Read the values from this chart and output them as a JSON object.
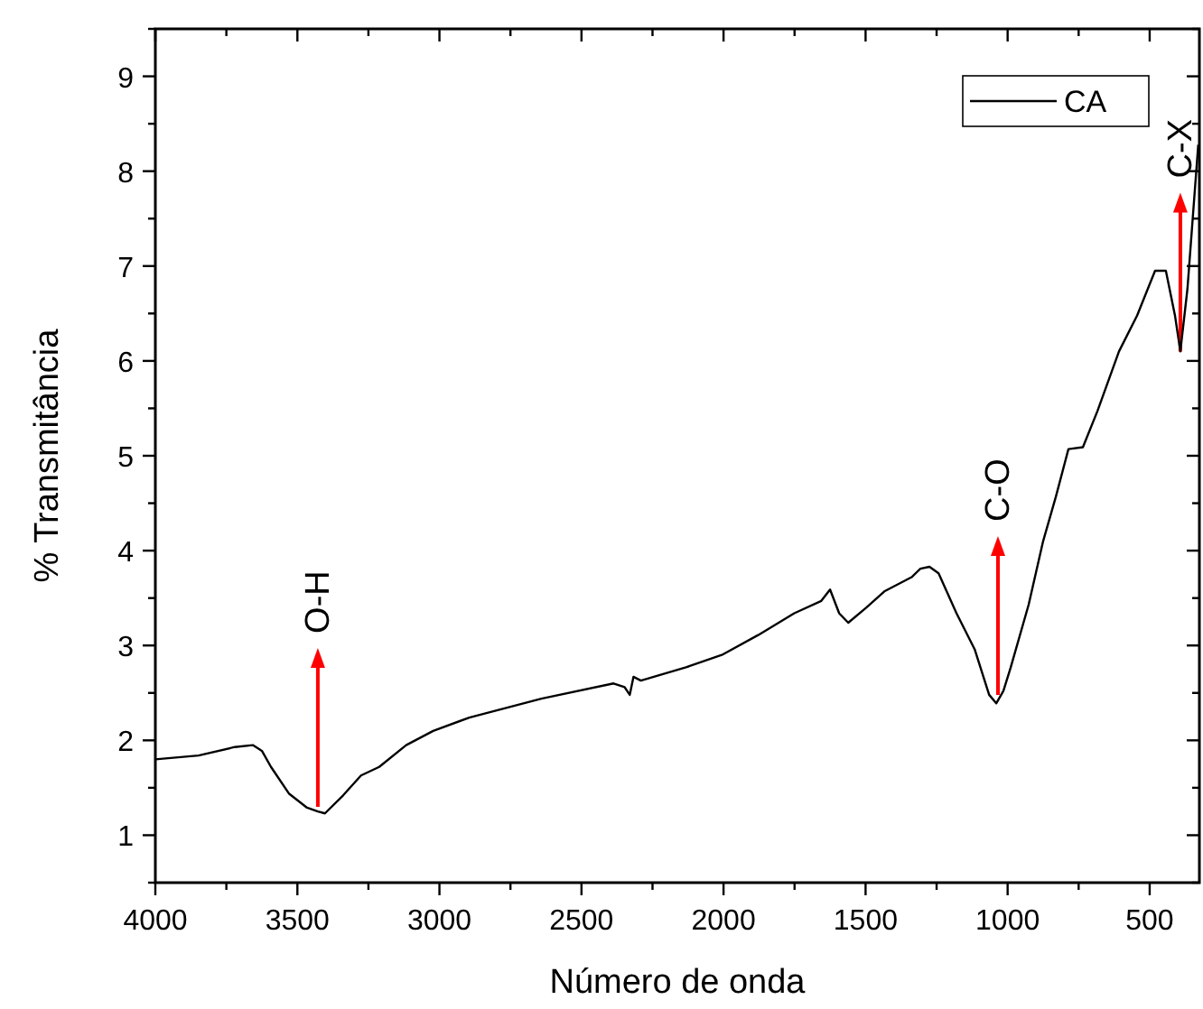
{
  "chart_data": {
    "type": "line",
    "xlabel": "Número de onda",
    "ylabel": "% Transmitância",
    "xlim": [
      4000,
      325
    ],
    "ylim": [
      0.5,
      9.5
    ],
    "xticks": [
      4000,
      {
        "value": 3750,
        "label": null
      },
      3500,
      {
        "value": 3250,
        "label": null
      },
      3000,
      {
        "value": 2750,
        "label": null
      },
      2500,
      {
        "value": 2250,
        "label": null
      },
      2000,
      {
        "value": 1750,
        "label": null
      },
      1500,
      {
        "value": 1250,
        "label": null
      },
      1000,
      {
        "value": 750,
        "label": null
      },
      500
    ],
    "yticks": [
      {
        "value": 0.5,
        "label": null
      },
      1,
      {
        "value": 1.5,
        "label": null
      },
      2,
      {
        "value": 2.5,
        "label": null
      },
      3,
      {
        "value": 3.5,
        "label": null
      },
      4,
      {
        "value": 4.5,
        "label": null
      },
      5,
      {
        "value": 5.5,
        "label": null
      },
      6,
      {
        "value": 6.5,
        "label": null
      },
      7,
      {
        "value": 7.5,
        "label": null
      },
      8,
      {
        "value": 8.5,
        "label": null
      },
      9,
      {
        "value": 9.5,
        "label": null
      }
    ],
    "x": [
      4000,
      3848,
      3720,
      3657,
      3625,
      3593,
      3530,
      3466,
      3428,
      3403,
      3339,
      3276,
      3212,
      3117,
      3022,
      2895,
      2641,
      2387,
      2348,
      2330,
      2317,
      2291,
      2132,
      2006,
      1878,
      1751,
      1656,
      1625,
      1593,
      1561,
      1497,
      1434,
      1338,
      1307,
      1275,
      1243,
      1180,
      1116,
      1065,
      1040,
      1015,
      989,
      926,
      875,
      830,
      786,
      735,
      684,
      608,
      544,
      481,
      443,
      411,
      392,
      367,
      329
    ],
    "series": [
      {
        "name": "CA",
        "color": "#000000",
        "values": [
          1.8,
          1.84,
          1.93,
          1.95,
          1.89,
          1.72,
          1.44,
          1.29,
          1.25,
          1.23,
          1.42,
          1.63,
          1.72,
          1.95,
          2.1,
          2.24,
          2.44,
          2.6,
          2.56,
          2.48,
          2.67,
          2.63,
          2.77,
          2.9,
          3.11,
          3.34,
          3.47,
          3.59,
          3.34,
          3.24,
          3.4,
          3.57,
          3.72,
          3.81,
          3.83,
          3.76,
          3.34,
          2.96,
          2.48,
          2.39,
          2.52,
          2.77,
          3.43,
          4.1,
          4.57,
          5.07,
          5.09,
          5.47,
          6.1,
          6.48,
          6.95,
          6.95,
          6.48,
          6.1,
          6.76,
          8.28
        ]
      }
    ],
    "legend": "top right",
    "grid": false,
    "line_style": "solid",
    "marker": "none",
    "annotations": [
      {
        "text": "O-H",
        "x": 3428,
        "y": 1.3
      },
      {
        "text": "C-O",
        "x": 1034,
        "y": 2.48
      },
      {
        "text": "C-X",
        "x": 392,
        "y": 6.1
      }
    ]
  }
}
